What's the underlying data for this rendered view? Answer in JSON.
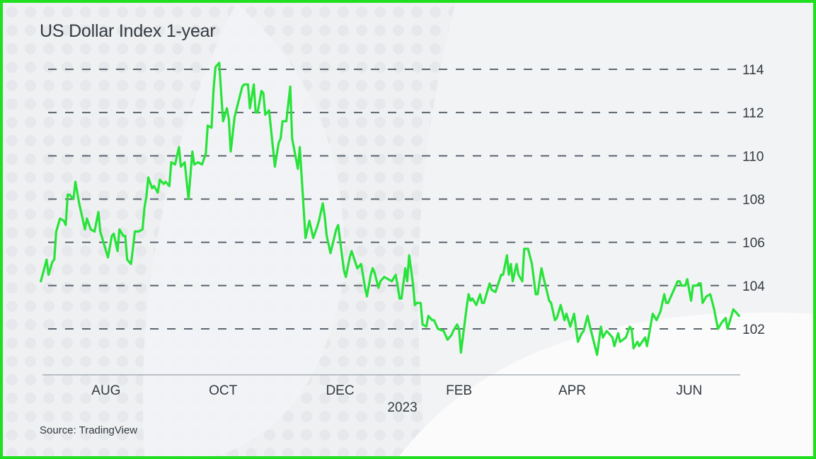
{
  "chart_data": {
    "type": "line",
    "title": "US Dollar Index 1-year",
    "source": "Source: TradingView",
    "xlabel": "",
    "ylabel": "",
    "xlim": [
      "2022-06-27",
      "2023-06-28"
    ],
    "ylim": [
      100.4,
      115
    ],
    "grid": "horizontal dashed",
    "legend": "none",
    "y_axis_side": "right",
    "yticks": [
      102,
      104,
      106,
      108,
      110,
      112,
      114
    ],
    "xticks": [
      {
        "date": "2022-08-01",
        "label": "AUG"
      },
      {
        "date": "2022-10-01",
        "label": "OCT"
      },
      {
        "date": "2022-12-01",
        "label": "DEC"
      },
      {
        "date": "2023-02-01",
        "label": "FEB",
        "sublabel": "2023"
      },
      {
        "date": "2023-04-01",
        "label": "APR"
      },
      {
        "date": "2023-06-01",
        "label": "JUN"
      }
    ],
    "colors": {
      "line": "#27e33a",
      "grid": "#5c6670",
      "border": "#1fe01f",
      "text": "#333a40"
    },
    "series": [
      {
        "points": [
          [
            "2022-06-28",
            104.2
          ],
          [
            "2022-07-01",
            105.2
          ],
          [
            "2022-07-02",
            104.5
          ],
          [
            "2022-07-04",
            105.1
          ],
          [
            "2022-07-05",
            105.2
          ],
          [
            "2022-07-06",
            106.5
          ],
          [
            "2022-07-08",
            107.1
          ],
          [
            "2022-07-10",
            107.0
          ],
          [
            "2022-07-11",
            106.8
          ],
          [
            "2022-07-12",
            108.2
          ],
          [
            "2022-07-13",
            108.2
          ],
          [
            "2022-07-15",
            108.0
          ],
          [
            "2022-07-16",
            108.8
          ],
          [
            "2022-07-18",
            107.8
          ],
          [
            "2022-07-21",
            106.6
          ],
          [
            "2022-07-22",
            107.1
          ],
          [
            "2022-07-24",
            106.6
          ],
          [
            "2022-07-26",
            106.5
          ],
          [
            "2022-07-28",
            107.4
          ],
          [
            "2022-07-29",
            106.5
          ],
          [
            "2022-08-02",
            105.3
          ],
          [
            "2022-08-04",
            106.3
          ],
          [
            "2022-08-05",
            106.4
          ],
          [
            "2022-08-07",
            105.6
          ],
          [
            "2022-08-08",
            106.6
          ],
          [
            "2022-08-10",
            106.3
          ],
          [
            "2022-08-11",
            106.3
          ],
          [
            "2022-08-12",
            105.2
          ],
          [
            "2022-08-14",
            105.0
          ],
          [
            "2022-08-15",
            105.7
          ],
          [
            "2022-08-16",
            106.5
          ],
          [
            "2022-08-18",
            106.5
          ],
          [
            "2022-08-20",
            106.6
          ],
          [
            "2022-08-21",
            107.6
          ],
          [
            "2022-08-22",
            108.1
          ],
          [
            "2022-08-23",
            109.0
          ],
          [
            "2022-08-25",
            108.5
          ],
          [
            "2022-08-26",
            108.6
          ],
          [
            "2022-08-28",
            108.3
          ],
          [
            "2022-08-29",
            108.9
          ],
          [
            "2022-08-31",
            108.7
          ],
          [
            "2022-09-01",
            108.8
          ],
          [
            "2022-09-03",
            108.6
          ],
          [
            "2022-09-04",
            109.7
          ],
          [
            "2022-09-06",
            109.6
          ],
          [
            "2022-09-08",
            110.4
          ],
          [
            "2022-09-09",
            109.5
          ],
          [
            "2022-09-11",
            109.7
          ],
          [
            "2022-09-13",
            108.0
          ],
          [
            "2022-09-15",
            110.2
          ],
          [
            "2022-09-16",
            109.6
          ],
          [
            "2022-09-18",
            109.7
          ],
          [
            "2022-09-20",
            109.6
          ],
          [
            "2022-09-22",
            110.1
          ],
          [
            "2022-09-23",
            111.4
          ],
          [
            "2022-09-25",
            111.3
          ],
          [
            "2022-09-26",
            113.0
          ],
          [
            "2022-09-27",
            114.1
          ],
          [
            "2022-09-29",
            114.3
          ],
          [
            "2022-09-30",
            112.9
          ],
          [
            "2022-10-01",
            111.6
          ],
          [
            "2022-10-03",
            112.2
          ],
          [
            "2022-10-04",
            111.7
          ],
          [
            "2022-10-05",
            110.2
          ],
          [
            "2022-10-07",
            111.8
          ],
          [
            "2022-10-11",
            113.2
          ],
          [
            "2022-10-12",
            113.3
          ],
          [
            "2022-10-14",
            113.3
          ],
          [
            "2022-10-15",
            112.2
          ],
          [
            "2022-10-17",
            113.3
          ],
          [
            "2022-10-18",
            112.0
          ],
          [
            "2022-10-19",
            112.0
          ],
          [
            "2022-10-21",
            113.0
          ],
          [
            "2022-10-22",
            112.9
          ],
          [
            "2022-10-23",
            111.9
          ],
          [
            "2022-10-25",
            112.1
          ],
          [
            "2022-10-28",
            109.5
          ],
          [
            "2022-10-30",
            110.6
          ],
          [
            "2022-10-31",
            110.8
          ],
          [
            "2022-11-01",
            111.6
          ],
          [
            "2022-11-03",
            111.6
          ],
          [
            "2022-11-05",
            113.2
          ],
          [
            "2022-11-06",
            110.8
          ],
          [
            "2022-11-09",
            109.4
          ],
          [
            "2022-11-10",
            110.4
          ],
          [
            "2022-11-13",
            106.2
          ],
          [
            "2022-11-15",
            107.0
          ],
          [
            "2022-11-17",
            106.2
          ],
          [
            "2022-11-19",
            106.7
          ],
          [
            "2022-11-20",
            107.0
          ],
          [
            "2022-11-22",
            107.8
          ],
          [
            "2022-11-23",
            107.2
          ],
          [
            "2022-11-24",
            106.3
          ],
          [
            "2022-11-26",
            105.5
          ],
          [
            "2022-11-29",
            106.6
          ],
          [
            "2022-11-30",
            106.8
          ],
          [
            "2022-12-03",
            104.7
          ],
          [
            "2022-12-04",
            104.4
          ],
          [
            "2022-12-06",
            105.3
          ],
          [
            "2022-12-07",
            105.6
          ],
          [
            "2022-12-10",
            104.8
          ],
          [
            "2022-12-12",
            105.0
          ],
          [
            "2022-12-14",
            103.9
          ],
          [
            "2022-12-15",
            103.5
          ],
          [
            "2022-12-17",
            104.5
          ],
          [
            "2022-12-18",
            104.8
          ],
          [
            "2022-12-19",
            104.6
          ],
          [
            "2022-12-21",
            103.9
          ],
          [
            "2022-12-22",
            104.2
          ],
          [
            "2022-12-24",
            104.4
          ],
          [
            "2022-12-26",
            104.3
          ],
          [
            "2022-12-28",
            104.2
          ],
          [
            "2022-12-30",
            104.5
          ],
          [
            "2022-12-31",
            104.0
          ],
          [
            "2023-01-01",
            103.4
          ],
          [
            "2023-01-02",
            103.4
          ],
          [
            "2023-01-04",
            104.8
          ],
          [
            "2023-01-05",
            104.2
          ],
          [
            "2023-01-06",
            105.4
          ],
          [
            "2023-01-08",
            104.1
          ],
          [
            "2023-01-09",
            103.1
          ],
          [
            "2023-01-10",
            103.2
          ],
          [
            "2023-01-12",
            103.2
          ],
          [
            "2023-01-13",
            102.2
          ],
          [
            "2023-01-15",
            102.1
          ],
          [
            "2023-01-16",
            102.6
          ],
          [
            "2023-01-18",
            102.4
          ],
          [
            "2023-01-19",
            102.4
          ],
          [
            "2023-01-21",
            102.0
          ],
          [
            "2023-01-24",
            101.9
          ],
          [
            "2023-01-26",
            101.5
          ],
          [
            "2023-01-28",
            101.7
          ],
          [
            "2023-01-29",
            101.9
          ],
          [
            "2023-01-31",
            102.2
          ],
          [
            "2023-02-01",
            102.0
          ],
          [
            "2023-02-02",
            100.9
          ],
          [
            "2023-02-05",
            103.0
          ],
          [
            "2023-02-06",
            103.6
          ],
          [
            "2023-02-07",
            103.3
          ],
          [
            "2023-02-08",
            103.4
          ],
          [
            "2023-02-10",
            103.1
          ],
          [
            "2023-02-12",
            103.6
          ],
          [
            "2023-02-13",
            103.2
          ],
          [
            "2023-02-14",
            103.2
          ],
          [
            "2023-02-16",
            103.8
          ],
          [
            "2023-02-17",
            104.1
          ],
          [
            "2023-02-18",
            103.8
          ],
          [
            "2023-02-20",
            103.7
          ],
          [
            "2023-02-23",
            104.5
          ],
          [
            "2023-02-24",
            104.5
          ],
          [
            "2023-02-26",
            105.4
          ],
          [
            "2023-02-27",
            104.5
          ],
          [
            "2023-02-28",
            105.0
          ],
          [
            "2023-03-01",
            104.2
          ],
          [
            "2023-03-03",
            105.0
          ],
          [
            "2023-03-04",
            104.5
          ],
          [
            "2023-03-06",
            104.2
          ],
          [
            "2023-03-07",
            105.7
          ],
          [
            "2023-03-09",
            105.7
          ],
          [
            "2023-03-11",
            105.0
          ],
          [
            "2023-03-13",
            103.6
          ],
          [
            "2023-03-14",
            103.6
          ],
          [
            "2023-03-16",
            104.8
          ],
          [
            "2023-03-17",
            104.4
          ],
          [
            "2023-03-20",
            103.3
          ],
          [
            "2023-03-21",
            103.2
          ],
          [
            "2023-03-23",
            102.4
          ],
          [
            "2023-03-24",
            102.5
          ],
          [
            "2023-03-26",
            103.1
          ],
          [
            "2023-03-28",
            102.4
          ],
          [
            "2023-03-29",
            102.7
          ],
          [
            "2023-03-31",
            102.1
          ],
          [
            "2023-04-02",
            102.7
          ],
          [
            "2023-04-04",
            101.4
          ],
          [
            "2023-04-06",
            101.8
          ],
          [
            "2023-04-07",
            101.9
          ],
          [
            "2023-04-09",
            102.6
          ],
          [
            "2023-04-10",
            102.2
          ],
          [
            "2023-04-14",
            100.8
          ],
          [
            "2023-04-16",
            102.1
          ],
          [
            "2023-04-17",
            101.6
          ],
          [
            "2023-04-19",
            101.9
          ],
          [
            "2023-04-21",
            101.7
          ],
          [
            "2023-04-22",
            101.6
          ],
          [
            "2023-04-23",
            101.2
          ],
          [
            "2023-04-25",
            101.8
          ],
          [
            "2023-04-26",
            101.4
          ],
          [
            "2023-04-29",
            101.6
          ],
          [
            "2023-05-01",
            102.1
          ],
          [
            "2023-05-02",
            102.0
          ],
          [
            "2023-05-03",
            101.1
          ],
          [
            "2023-05-05",
            101.4
          ],
          [
            "2023-05-06",
            101.2
          ],
          [
            "2023-05-09",
            101.6
          ],
          [
            "2023-05-10",
            101.2
          ],
          [
            "2023-05-13",
            102.7
          ],
          [
            "2023-05-15",
            102.4
          ],
          [
            "2023-05-17",
            102.8
          ],
          [
            "2023-05-19",
            103.6
          ],
          [
            "2023-05-20",
            103.2
          ],
          [
            "2023-05-21",
            103.2
          ],
          [
            "2023-05-26",
            104.2
          ],
          [
            "2023-05-27",
            104.2
          ],
          [
            "2023-05-28",
            104.0
          ],
          [
            "2023-05-30",
            104.0
          ],
          [
            "2023-05-31",
            104.3
          ],
          [
            "2023-06-02",
            103.3
          ],
          [
            "2023-06-03",
            104.0
          ],
          [
            "2023-06-05",
            104.0
          ],
          [
            "2023-06-06",
            104.1
          ],
          [
            "2023-06-07",
            104.1
          ],
          [
            "2023-06-08",
            103.2
          ],
          [
            "2023-06-10",
            103.5
          ],
          [
            "2023-06-12",
            103.6
          ],
          [
            "2023-06-14",
            102.9
          ],
          [
            "2023-06-16",
            102.0
          ],
          [
            "2023-06-18",
            102.3
          ],
          [
            "2023-06-20",
            102.5
          ],
          [
            "2023-06-21",
            102.0
          ],
          [
            "2023-06-24",
            102.9
          ],
          [
            "2023-06-27",
            102.6
          ]
        ]
      }
    ]
  }
}
